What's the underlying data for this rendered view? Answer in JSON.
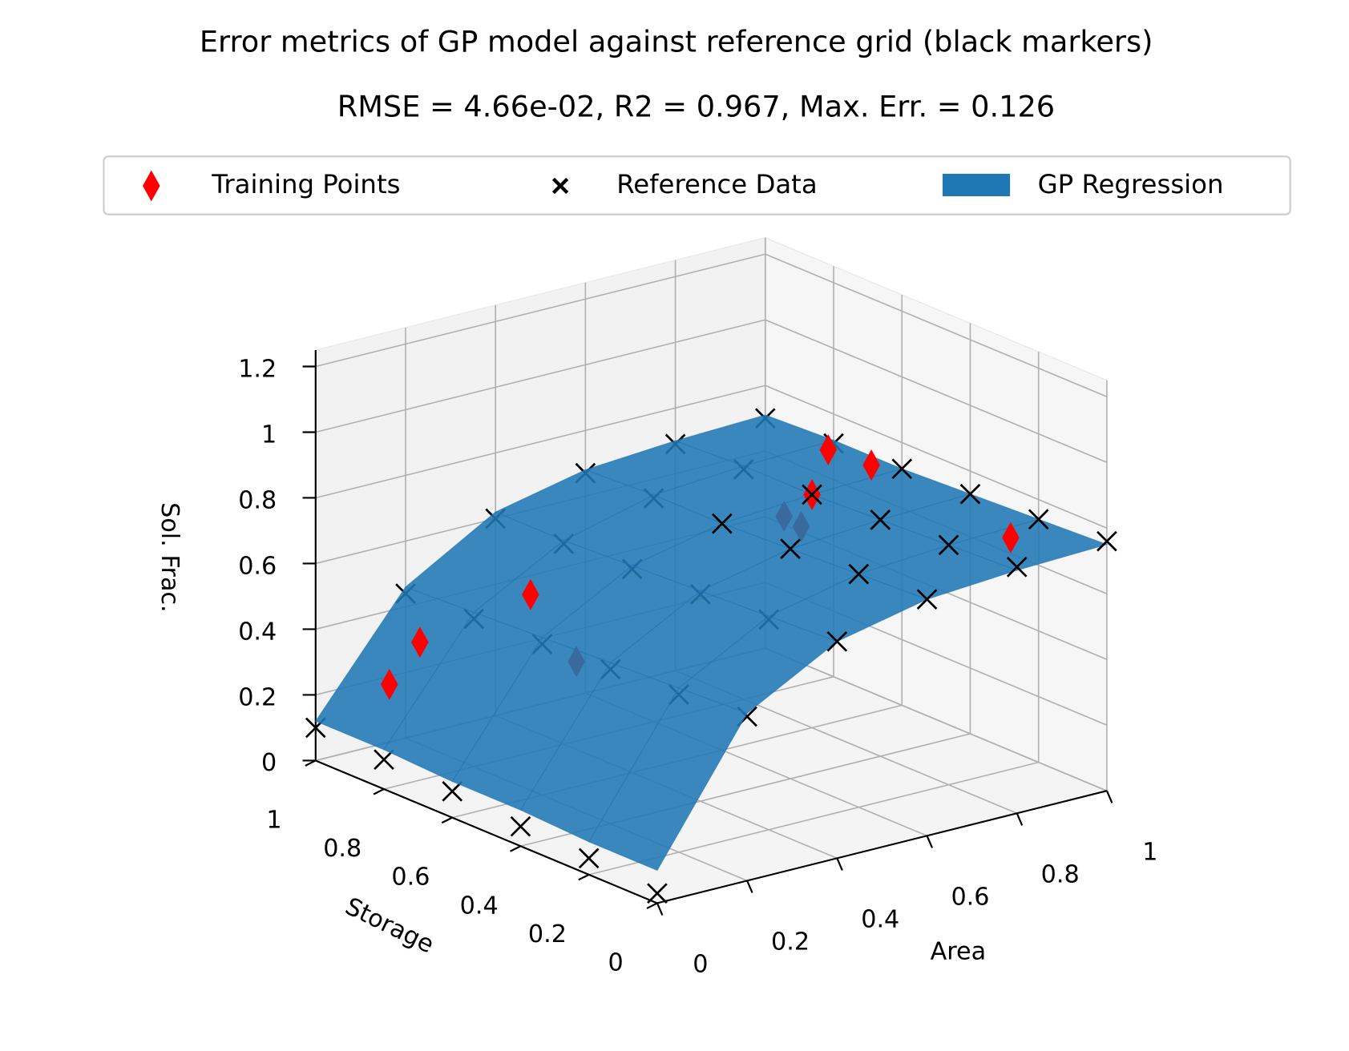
{
  "chart_data": {
    "type": "surface3d",
    "title": "Error metrics of GP model against reference grid (black markers)",
    "subtitle": "RMSE = 4.66e-02, R2 = 0.967, Max. Err. = 0.126",
    "xlabel": "Area",
    "ylabel": "Storage",
    "zlabel": "Sol. Frac.",
    "xlim": [
      0,
      1
    ],
    "ylim": [
      0,
      1
    ],
    "zlim": [
      0,
      1.25
    ],
    "xticks": [
      0.0,
      0.2,
      0.4,
      0.6,
      0.8,
      1.0
    ],
    "yticks": [
      0.0,
      0.2,
      0.4,
      0.6,
      0.8,
      1.0
    ],
    "zticks": [
      0.0,
      0.2,
      0.4,
      0.6,
      0.8,
      1.0,
      1.2
    ],
    "grid": true,
    "legend": "top",
    "surface": {
      "name": "GP Regression",
      "color": "#1f77b4",
      "x": [
        0,
        0.2,
        0.4,
        0.6,
        0.8,
        1
      ],
      "y": [
        0,
        0.2,
        0.4,
        0.6,
        0.8,
        1
      ],
      "z": [
        [
          0.1,
          0.51,
          0.66,
          0.72,
          0.74,
          0.75
        ],
        [
          0.1,
          0.5,
          0.65,
          0.71,
          0.73,
          0.74
        ],
        [
          0.11,
          0.49,
          0.64,
          0.7,
          0.72,
          0.73
        ],
        [
          0.11,
          0.48,
          0.63,
          0.69,
          0.71,
          0.72
        ],
        [
          0.12,
          0.47,
          0.62,
          0.69,
          0.71,
          0.72
        ],
        [
          0.12,
          0.46,
          0.62,
          0.68,
          0.7,
          0.71
        ]
      ]
    },
    "series": [
      {
        "name": "Training Points",
        "color": "#ff0000",
        "marker": "diamond",
        "x": [
          0.05,
          0.08,
          0.25,
          0.2,
          0.95,
          0.97,
          0.8,
          0.7,
          0.7,
          0.9
        ],
        "y": [
          0.85,
          0.8,
          0.7,
          0.5,
          0.75,
          0.65,
          0.6,
          0.55,
          0.5,
          0.15
        ],
        "z": [
          0.28,
          0.42,
          0.55,
          0.45,
          0.73,
          0.72,
          0.71,
          0.7,
          0.69,
          0.74
        ]
      },
      {
        "name": "Reference Data",
        "color": "#000000",
        "marker": "x",
        "x": [
          0,
          0.2,
          0.4,
          0.6,
          0.8,
          1,
          0,
          0.2,
          0.4,
          0.6,
          0.8,
          1,
          0,
          0.2,
          0.4,
          0.6,
          0.8,
          1,
          0,
          0.2,
          0.4,
          0.6,
          0.8,
          1,
          0,
          0.2,
          0.4,
          0.6,
          0.8,
          1,
          0,
          0.2,
          0.4,
          0.6,
          0.8,
          1
        ],
        "y": [
          0,
          0,
          0,
          0,
          0,
          0,
          0.2,
          0.2,
          0.2,
          0.2,
          0.2,
          0.2,
          0.4,
          0.4,
          0.4,
          0.4,
          0.4,
          0.4,
          0.6,
          0.6,
          0.6,
          0.6,
          0.6,
          0.6,
          0.8,
          0.8,
          0.8,
          0.8,
          0.8,
          0.8,
          1,
          1,
          1,
          1,
          1,
          1
        ],
        "z": [
          0.03,
          0.5,
          0.66,
          0.72,
          0.75,
          0.76,
          0.05,
          0.48,
          0.64,
          0.71,
          0.73,
          0.74,
          0.06,
          0.47,
          0.63,
          0.7,
          0.72,
          0.73,
          0.08,
          0.46,
          0.62,
          0.69,
          0.71,
          0.72,
          0.09,
          0.45,
          0.61,
          0.68,
          0.7,
          0.71,
          0.1,
          0.44,
          0.6,
          0.67,
          0.69,
          0.7
        ]
      }
    ]
  }
}
